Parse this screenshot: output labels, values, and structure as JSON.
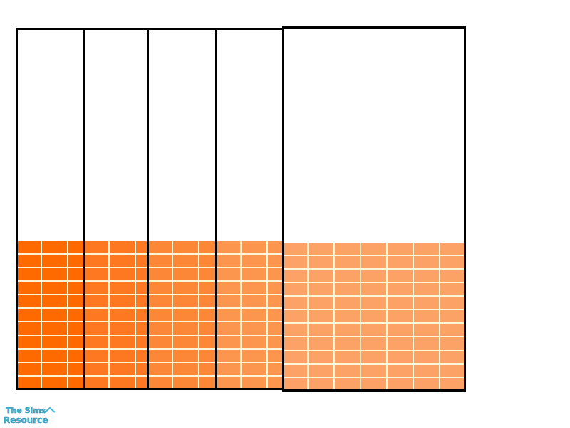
{
  "panels": [
    {
      "color": "#ff6a00"
    },
    {
      "color": "#fd7820"
    },
    {
      "color": "#fc8736"
    },
    {
      "color": "#fc964e"
    },
    {
      "color": "#fda266"
    }
  ],
  "tile_fill_fraction": 0.41,
  "logo": {
    "text_top": "The Sims",
    "text_bottom": "Resource",
    "color": "#3fb6d6"
  }
}
